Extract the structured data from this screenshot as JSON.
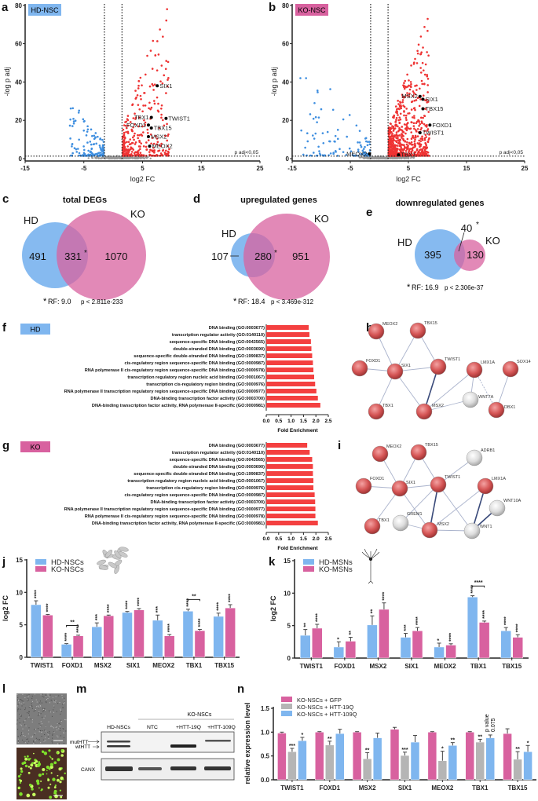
{
  "panels": {
    "a": "a",
    "b": "b",
    "c": "c",
    "d": "d",
    "e": "e",
    "f": "f",
    "g": "g",
    "h": "h",
    "i": "i",
    "j": "j",
    "k": "k",
    "l": "l",
    "m": "m",
    "n": "n"
  },
  "colors": {
    "hd": "#7fb6ef",
    "ko": "#d8619f",
    "up": "#ee3333",
    "down": "#3f8fe0",
    "ns": "#999999",
    "gray_bar": "#b5b5b5",
    "go_bar": "#f44040",
    "node_red": "#d55555",
    "node_gray": "#dddddd"
  },
  "chart_data": [
    {
      "id": "a",
      "type": "scatter",
      "badge": "HD-NSC",
      "badge_color": "#7fb6ef",
      "xlabel": "log2 FC",
      "ylabel": "-log p adj",
      "xlim": [
        -15,
        25
      ],
      "ylim": [
        0,
        80
      ],
      "xticks": [
        "-15",
        "-5",
        "5",
        "15",
        "25"
      ],
      "yticks": [
        "0",
        "20",
        "40",
        "60",
        "80"
      ],
      "fc_threshold": 1.5,
      "p_threshold_label": "p adj<0,05",
      "p_threshold": 1.3,
      "highlighted": [
        {
          "gene": "SIX1",
          "x": 7.5,
          "y": 38
        },
        {
          "gene": "TBX1",
          "x": 6.5,
          "y": 21.5
        },
        {
          "gene": "TWIST1",
          "x": 9,
          "y": 21
        },
        {
          "gene": "FOXD1",
          "x": 6,
          "y": 17.5
        },
        {
          "gene": "TBX15",
          "x": 6.5,
          "y": 16
        },
        {
          "gene": "MSX2",
          "x": 6,
          "y": 11.5
        },
        {
          "gene": "MEOX2",
          "x": 6.2,
          "y": 6.5
        }
      ]
    },
    {
      "id": "b",
      "type": "scatter",
      "badge": "KO-NSC",
      "badge_color": "#d8619f",
      "xlabel": "log2 FC",
      "ylabel": "-log p adj",
      "xlim": [
        -15,
        25
      ],
      "ylim": [
        0,
        80
      ],
      "xticks": [
        "-15",
        "-5",
        "5",
        "15",
        "25"
      ],
      "yticks": [
        "0",
        "20",
        "40",
        "60",
        "80"
      ],
      "fc_threshold": 1.5,
      "p_threshold_label": "p adj<0,05",
      "p_threshold": 1.3,
      "highlighted": [
        {
          "gene": "MSX2",
          "x": 7,
          "y": 32.5
        },
        {
          "gene": "SIX1",
          "x": 7.5,
          "y": 31
        },
        {
          "gene": "TBX15",
          "x": 7.5,
          "y": 26
        },
        {
          "gene": "FOXD1",
          "x": 8.7,
          "y": 17.5
        },
        {
          "gene": "TWIST1",
          "x": 7,
          "y": 13.5
        },
        {
          "gene": "MEOX2",
          "x": -1.7,
          "y": 2.5
        },
        {
          "gene": "TBX1",
          "x": 3.3,
          "y": 2
        }
      ]
    },
    {
      "id": "c",
      "type": "venn",
      "title": "total DEGs",
      "sets": [
        "HD",
        "KO"
      ],
      "only_a": "491",
      "both": "331",
      "both_mark": "*",
      "only_b": "1070",
      "stat_mark": "*",
      "rf": "RF: 9.0",
      "p": "p < 2.811e-233"
    },
    {
      "id": "d",
      "type": "venn",
      "title": "upregulated genes",
      "sets": [
        "HD",
        "KO"
      ],
      "only_a": "107",
      "both": "280",
      "both_mark": "*",
      "only_b": "951",
      "stat_mark": "*",
      "rf": "RF: 18.4",
      "p": "p < 3.469e-312"
    },
    {
      "id": "e",
      "type": "venn",
      "title": "downregulated genes",
      "sets": [
        "HD",
        "KO"
      ],
      "only_a": "395",
      "both": "40",
      "both_mark": "*",
      "only_b": "130",
      "stat_mark": "*",
      "rf": "RF: 16.9",
      "p": "p < 2.306e-37"
    },
    {
      "id": "f",
      "type": "bar",
      "orientation": "horizontal",
      "badge": "HD",
      "badge_color": "#7fb6ef",
      "xlabel": "Fold Enrichment",
      "xlim": [
        0,
        2.5
      ],
      "xticks": [
        "0.0",
        "0.5",
        "1.0",
        "1.5",
        "2.0",
        "2.5"
      ],
      "categories": [
        "DNA binding (GO:0003677)",
        "transcription regulator activity (GO:0140110)",
        "sequence-specific DNA binding (GO:0043565)",
        "double-stranded DNA binding (GO:0003690)",
        "sequence-specific double-stranded DNA binding (GO:1990837)",
        "cis-regulatory region sequence-specific DNA binding (GO:0000987)",
        "RNA polymerase II cis-regulatory region sequence-specific DNA binding (GO:0000978)",
        "transcription regulatory region nucleic acid binding (GO:0001067)",
        "transcription cis-regulatory region binding (GO:0000976)",
        "RNA polymerase II transcription regulatory region sequence-specific DNA binding (GO:0000977)",
        "DNA-binding transcription factor activity (GO:0003700)",
        "DNA-binding transcription factor activity, RNA polymerase II-specific (GO:0000981)"
      ],
      "values": [
        1.71,
        1.74,
        1.8,
        1.82,
        1.85,
        1.88,
        1.9,
        1.93,
        1.97,
        2.02,
        2.08,
        2.18
      ]
    },
    {
      "id": "g",
      "type": "bar",
      "orientation": "horizontal",
      "badge": "KO",
      "badge_color": "#d8619f",
      "xlabel": "Fold Enrichment",
      "xlim": [
        0,
        2.5
      ],
      "xticks": [
        "0.0",
        "0.5",
        "1.0",
        "1.5",
        "2.0",
        "2.5"
      ],
      "categories": [
        "DNA binding (GO:0003677)",
        "transcription regulator activity (GO:0140110)",
        "sequence-specific DNA binding (GO:0043565)",
        "double-stranded DNA binding (GO:0003690)",
        "sequence-specific double-stranded DNA binding (GO:1990837)",
        "transcription regulatory region nucleic acid binding (GO:0001067)",
        "transcription cis-regulatory region binding (GO:0000976)",
        "cis-regulatory region sequence-specific DNA binding (GO:0000987)",
        "DNA-binding transcription factor activity (GO:0003700)",
        "RNA polymerase II transcription regulatory region sequence-specific DNA binding (GO:0000977)",
        "RNA polymerase II cis-regulatory region sequence-specific DNA binding (GO:0000978)",
        "DNA-binding transcription factor activity, RNA polymerase II-specific (GO:0000981)"
      ],
      "values": [
        1.65,
        1.75,
        1.85,
        1.88,
        1.88,
        1.9,
        1.9,
        1.95,
        1.97,
        1.98,
        1.98,
        2.08
      ]
    },
    {
      "id": "j",
      "type": "bar",
      "ylabel": "log2 FC",
      "ylim": [
        0,
        15
      ],
      "yticks": [
        "0",
        "5",
        "10",
        "15"
      ],
      "categories": [
        "TWIST1",
        "FOXD1",
        "MSX2",
        "SIX1",
        "MEOX2",
        "TBX1",
        "TBX15"
      ],
      "series": [
        {
          "name": "HD-NSCs",
          "color": "#7fb6ef",
          "values": [
            8.1,
            2.0,
            4.7,
            6.9,
            5.7,
            7.1,
            6.3
          ],
          "errors": [
            0.6,
            0.1,
            0.6,
            0.15,
            0.8,
            0.3,
            0.5
          ],
          "stars": [
            "****",
            "****",
            "***",
            "****",
            "***",
            "****",
            "****"
          ]
        },
        {
          "name": "KO-NSCs",
          "color": "#d8619f",
          "values": [
            6.5,
            3.3,
            6.4,
            7.3,
            3.3,
            4.1,
            7.6
          ],
          "errors": [
            0.1,
            0.1,
            0.1,
            0.2,
            0.2,
            0.2,
            0.5
          ],
          "stars": [
            "****",
            "****",
            "****",
            "****",
            "****",
            "****",
            "****"
          ]
        }
      ],
      "comparisons": [
        {
          "category": "FOXD1",
          "label": "**"
        },
        {
          "category": "TBX1",
          "label": "**"
        }
      ]
    },
    {
      "id": "k",
      "type": "bar",
      "ylabel": "log2 FC",
      "ylim": [
        0,
        15
      ],
      "yticks": [
        "0",
        "5",
        "10",
        "15"
      ],
      "categories": [
        "TWIST1",
        "FOXD1",
        "MSX2",
        "SIX1",
        "MEOX2",
        "TBX1",
        "TBX15"
      ],
      "series": [
        {
          "name": "HD-MSNs",
          "color": "#7fb6ef",
          "values": [
            3.5,
            1.7,
            5.1,
            3.2,
            1.7,
            9.4,
            4.2
          ],
          "errors": [
            0.9,
            0.8,
            1.4,
            0.6,
            0.6,
            0.2,
            0.5
          ],
          "stars": [
            "**",
            "*",
            "**",
            "***",
            "*",
            "****",
            "****"
          ]
        },
        {
          "name": "KO-MSNs",
          "color": "#d8619f",
          "values": [
            4.6,
            2.6,
            7.5,
            4.2,
            2.0,
            5.5,
            3.2
          ],
          "errors": [
            0.6,
            0.6,
            1.0,
            0.5,
            0.2,
            0.2,
            0.4
          ],
          "stars": [
            "****",
            "**",
            "****",
            "****",
            "****",
            "****",
            "****"
          ]
        }
      ],
      "comparisons": [
        {
          "category": "TBX1",
          "label": "****"
        }
      ]
    },
    {
      "id": "n",
      "type": "bar",
      "ylabel": "relative expression level",
      "ylim": [
        0,
        1.5
      ],
      "yticks": [
        "0.0",
        "0.5",
        "1.0",
        "1.5"
      ],
      "categories": [
        "TWIST1",
        "FOXD1",
        "MSX2",
        "SIX1",
        "MEOX2",
        "TBX1",
        "TBX15"
      ],
      "series": [
        {
          "name": "KO-NSCs + GFP",
          "color": "#d8619f",
          "values": [
            0.98,
            1.0,
            1.0,
            1.06,
            1.0,
            1.0,
            0.97
          ],
          "errors": [
            0.02,
            0.01,
            0.01,
            0.04,
            0.01,
            0.01,
            0.1
          ],
          "stars": [
            "",
            "",
            "",
            "",
            "",
            "",
            ""
          ]
        },
        {
          "name": "KO-NSCs + HTT-19Q",
          "color": "#b5b5b5",
          "values": [
            0.59,
            0.73,
            0.44,
            0.51,
            0.4,
            0.79,
            0.43
          ],
          "errors": [
            0.07,
            0.08,
            0.13,
            0.07,
            0.2,
            0.06,
            0.16
          ],
          "stars": [
            "***",
            "**",
            "**",
            "***",
            "*",
            "**",
            "**"
          ]
        },
        {
          "name": "KO-NSCs + HTT-109Q",
          "color": "#7fb6ef",
          "values": [
            0.82,
            0.97,
            0.88,
            0.79,
            0.72,
            0.88,
            0.59
          ],
          "errors": [
            0.07,
            0.09,
            0.1,
            0.14,
            0.06,
            0.06,
            0.13
          ],
          "stars": [
            "*",
            "",
            "",
            "",
            "**",
            "",
            "*"
          ]
        }
      ],
      "annotation": {
        "category": "TBX1",
        "line1": "p value",
        "line2": "0.075"
      }
    }
  ],
  "networks": {
    "h": {
      "nodes": [
        {
          "id": "MEOX2",
          "type": "red"
        },
        {
          "id": "TBX15",
          "type": "red"
        },
        {
          "id": "FOXD1",
          "type": "red"
        },
        {
          "id": "SIX1",
          "type": "red"
        },
        {
          "id": "TWIST1",
          "type": "red"
        },
        {
          "id": "LMX1A",
          "type": "red"
        },
        {
          "id": "SOX14",
          "type": "red"
        },
        {
          "id": "WNT7A",
          "type": "gray"
        },
        {
          "id": "DBX1",
          "type": "red"
        },
        {
          "id": "TBX1",
          "type": "red"
        },
        {
          "id": "MSX2",
          "type": "red"
        }
      ],
      "edges": [
        [
          "MEOX2",
          "SIX1"
        ],
        [
          "TBX15",
          "SIX1"
        ],
        [
          "TBX15",
          "TWIST1"
        ],
        [
          "FOXD1",
          "SIX1"
        ],
        [
          "SIX1",
          "TWIST1"
        ],
        [
          "SIX1",
          "TBX1"
        ],
        [
          "SIX1",
          "MSX2"
        ],
        [
          "TWIST1",
          "MSX2",
          "strong"
        ],
        [
          "LMX1A",
          "MSX2"
        ],
        [
          "LMX1A",
          "WNT7A"
        ],
        [
          "LMX1A",
          "DBX1",
          "dashed"
        ],
        [
          "WNT7A",
          "MSX2"
        ],
        [
          "SOX14",
          "DBX1"
        ]
      ]
    },
    "i": {
      "nodes": [
        {
          "id": "MEOX2",
          "type": "red"
        },
        {
          "id": "TBX15",
          "type": "red"
        },
        {
          "id": "ADRB1",
          "type": "gray"
        },
        {
          "id": "FOXD1",
          "type": "red"
        },
        {
          "id": "SIX1",
          "type": "red"
        },
        {
          "id": "TWIST1",
          "type": "red"
        },
        {
          "id": "LMX1A",
          "type": "red"
        },
        {
          "id": "WNT10A",
          "type": "gray"
        },
        {
          "id": "TBX1",
          "type": "red"
        },
        {
          "id": "GREM1",
          "type": "gray"
        },
        {
          "id": "MSX2",
          "type": "red"
        },
        {
          "id": "WNT1",
          "type": "gray"
        }
      ],
      "edges": [
        [
          "MEOX2",
          "SIX1"
        ],
        [
          "TBX15",
          "SIX1"
        ],
        [
          "TBX15",
          "TWIST1"
        ],
        [
          "ADRB1",
          "TWIST1"
        ],
        [
          "FOXD1",
          "SIX1"
        ],
        [
          "SIX1",
          "TWIST1"
        ],
        [
          "SIX1",
          "TBX1"
        ],
        [
          "SIX1",
          "MSX2"
        ],
        [
          "TWIST1",
          "MSX2",
          "strong"
        ],
        [
          "TWIST1",
          "GREM1"
        ],
        [
          "TWIST1",
          "WNT1"
        ],
        [
          "GREM1",
          "MSX2"
        ],
        [
          "MSX2",
          "WNT1"
        ],
        [
          "LMX1A",
          "WNT1",
          "strong"
        ],
        [
          "LMX1A",
          "MSX2"
        ],
        [
          "WNT10A",
          "WNT1",
          "strong"
        ]
      ]
    }
  },
  "western_blot": {
    "group_label": "KO-NSCs",
    "lanes": [
      "HD-NSCs",
      "NTC",
      "+HTT-19Q",
      "+HTT-109Q"
    ],
    "band_labels": [
      "mutHTT",
      "wtHTT"
    ],
    "loading_control": "CANX"
  }
}
